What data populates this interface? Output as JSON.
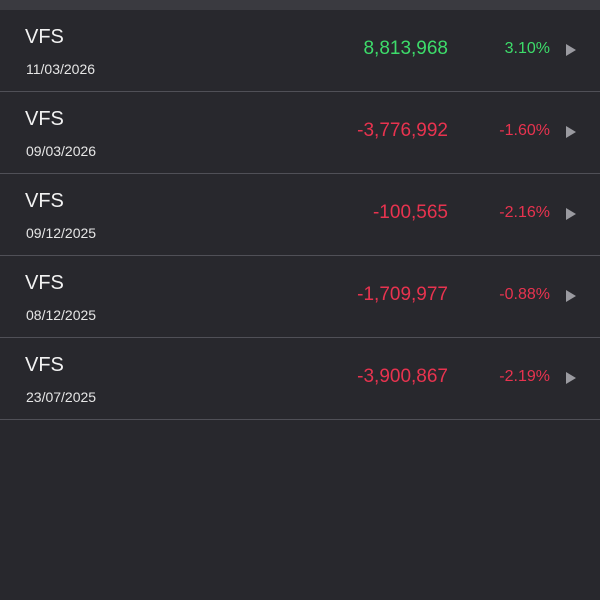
{
  "colors": {
    "positive": "#3ddc6a",
    "negative": "#e8334f"
  },
  "transactions": [
    {
      "symbol": "VFS",
      "date": "11/03/2026",
      "amount": "8,813,968",
      "percent": "3.10%",
      "direction": "positive"
    },
    {
      "symbol": "VFS",
      "date": "09/03/2026",
      "amount": "-3,776,992",
      "percent": "-1.60%",
      "direction": "negative"
    },
    {
      "symbol": "VFS",
      "date": "09/12/2025",
      "amount": "-100,565",
      "percent": "-2.16%",
      "direction": "negative"
    },
    {
      "symbol": "VFS",
      "date": "08/12/2025",
      "amount": "-1,709,977",
      "percent": "-0.88%",
      "direction": "negative"
    },
    {
      "symbol": "VFS",
      "date": "23/07/2025",
      "amount": "-3,900,867",
      "percent": "-2.19%",
      "direction": "negative"
    }
  ],
  "icons": {
    "row_arrow": "play-arrow-icon"
  }
}
